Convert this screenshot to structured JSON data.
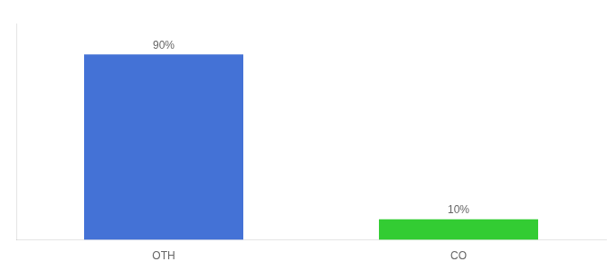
{
  "chart_data": {
    "type": "bar",
    "categories": [
      "OTH",
      "CO"
    ],
    "values": [
      90,
      10
    ],
    "value_labels": [
      "90%",
      "10%"
    ],
    "colors": [
      "#4472d6",
      "#33cc33"
    ],
    "ylim": [
      0,
      105
    ],
    "grid": false,
    "data_labels": true,
    "tick_labels": "x"
  }
}
